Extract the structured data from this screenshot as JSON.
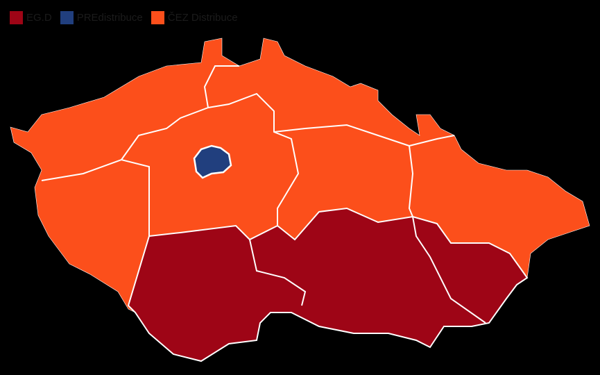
{
  "legend": [
    {
      "label": "EG.D",
      "color": "#9e0516"
    },
    {
      "label": "PREdistribuce",
      "color": "#213f7e"
    },
    {
      "label": "ČEZ Distribuce",
      "color": "#fc4f1b"
    }
  ],
  "colors": {
    "background": "#000000",
    "border": "#ffffff"
  }
}
